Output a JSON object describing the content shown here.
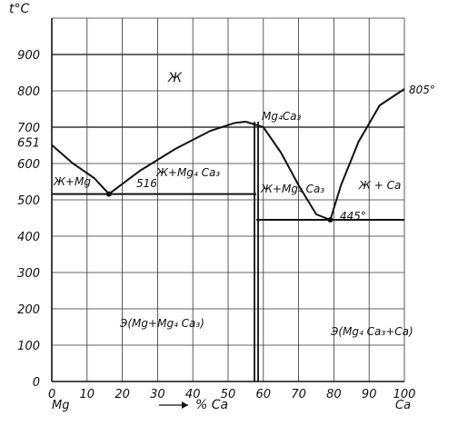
{
  "chart_data": {
    "type": "line",
    "title": "",
    "ylabel": "t°C",
    "xlabel": "% Ca",
    "x_start_label": "Mg",
    "x_end_label": "Ca",
    "xlim": [
      0,
      100
    ],
    "ylim": [
      0,
      1000
    ],
    "grid": true,
    "x_ticks": [
      "0",
      "10",
      "20",
      "30",
      "40",
      "50",
      "60",
      "70",
      "80",
      "90",
      "100"
    ],
    "y_ticks": [
      "0",
      "100",
      "200",
      "300",
      "400",
      "500",
      "600",
      "700",
      "800",
      "900"
    ],
    "y_special_tick": "651",
    "series": [
      {
        "values": [
          [
            0,
            651
          ],
          [
            6,
            600
          ],
          [
            12,
            560
          ],
          [
            16.2,
            516
          ]
        ]
      },
      {
        "values": [
          [
            16.2,
            516
          ],
          [
            25,
            580
          ],
          [
            35,
            640
          ],
          [
            45,
            690
          ],
          [
            52,
            712
          ],
          [
            55,
            715
          ]
        ]
      },
      {
        "values": [
          [
            55,
            715
          ],
          [
            60,
            700
          ],
          [
            65,
            630
          ],
          [
            70,
            540
          ],
          [
            75,
            460
          ],
          [
            79,
            445
          ]
        ]
      },
      {
        "values": [
          [
            79,
            445
          ],
          [
            82,
            540
          ],
          [
            87,
            660
          ],
          [
            93,
            760
          ],
          [
            100,
            805
          ]
        ]
      }
    ],
    "horizontal_lines": [
      {
        "y": 516,
        "x_range": [
          0,
          58
        ]
      },
      {
        "y": 445,
        "x_range": [
          58,
          100
        ]
      }
    ],
    "vertical_lines": [
      {
        "x": 58,
        "y_range": [
          0,
          715
        ]
      }
    ],
    "annotations": {
      "liquid": "Ж",
      "region_liquid_mg": "Ж+Mg",
      "eutectic1_temp": "516",
      "region_liquid_compound": "Ж+Mg₄ Ca₃",
      "compound_label": "Mg₄Ca₃",
      "region_liquid_compound_right": "Ж+Mg₄ Ca₃",
      "region_liquid_ca": "Ж + Ca",
      "eutectic2_temp": "445°",
      "ca_melt_temp": "805°",
      "solid_left": "Э(Mg+Mg₄ Ca₃)",
      "solid_right": "Э(Mg₄ Ca₃+Ca)"
    }
  }
}
